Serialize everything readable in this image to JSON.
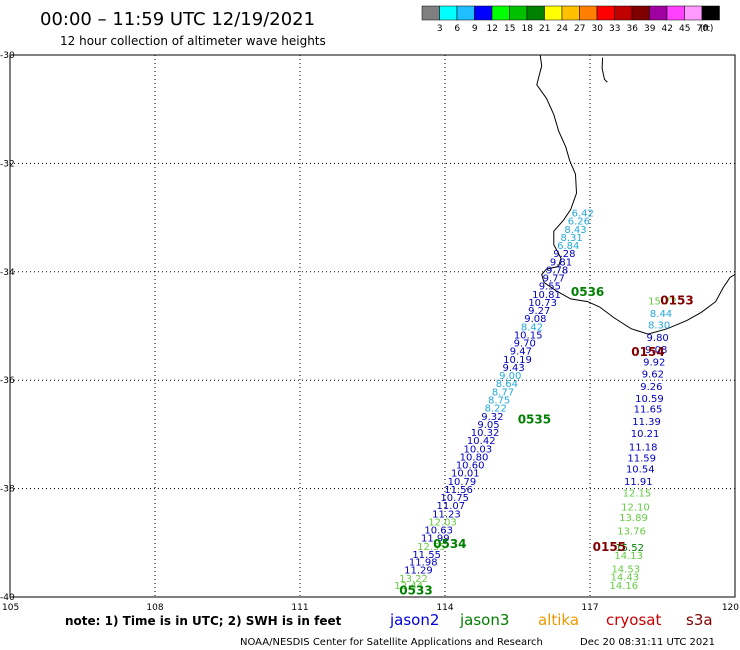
{
  "header": {
    "title": "00:00 – 11:59 UTC 12/19/2021",
    "subtitle": "12 hour collection of altimeter wave heights"
  },
  "colorbar": {
    "colors": [
      "#808080",
      "#00ffff",
      "#1fbfff",
      "#0000ff",
      "#00ff00",
      "#00c000",
      "#008000",
      "#ffff00",
      "#ffc000",
      "#ff8000",
      "#ff0000",
      "#c00000",
      "#800000",
      "#a000a0",
      "#ff40ff",
      "#ff99ff",
      "#000000"
    ],
    "labels": [
      "3",
      "6",
      "9",
      "12",
      "15",
      "18",
      "21",
      "24",
      "27",
      "30",
      "33",
      "36",
      "39",
      "42",
      "45",
      "70",
      "(ft)"
    ]
  },
  "chart_data": {
    "type": "scatter",
    "title": "00:00 – 11:59 UTC 12/19/2021",
    "subtitle": "12 hour collection of altimeter wave heights",
    "xlim": [
      105,
      120
    ],
    "ylim": [
      -40,
      -30
    ],
    "x_ticks": [
      "105",
      "108",
      "111",
      "114",
      "117",
      "120"
    ],
    "y_ticks": [
      "-30",
      "-32",
      "-34",
      "-36",
      "-38",
      "-40"
    ],
    "grid": true,
    "colors": {
      "jason2": "#0000c0",
      "jason3": "#008000",
      "jason3_light": "#66cc44",
      "cyan": "#22aadd",
      "pass_green": "#008000",
      "pass_red": "#800000"
    },
    "track_a": [
      {
        "x": 113.25,
        "y": -39.85,
        "v": "12.44",
        "c": "jason3_light"
      },
      {
        "x": 113.35,
        "y": -39.72,
        "v": "13.22",
        "c": "jason3_light"
      },
      {
        "x": 113.45,
        "y": -39.57,
        "v": "11.29",
        "c": "jason2"
      },
      {
        "x": 113.55,
        "y": -39.42,
        "v": "11.98",
        "c": "jason2"
      },
      {
        "x": 113.62,
        "y": -39.28,
        "v": "11.55",
        "c": "jason2"
      },
      {
        "x": 113.72,
        "y": -39.13,
        "v": "12.55",
        "c": "jason3_light"
      },
      {
        "x": 113.8,
        "y": -38.98,
        "v": "11.99",
        "c": "jason2"
      },
      {
        "x": 113.87,
        "y": -38.83,
        "v": "10.63",
        "c": "jason2"
      },
      {
        "x": 113.95,
        "y": -38.68,
        "v": "12.03",
        "c": "jason3_light"
      },
      {
        "x": 114.03,
        "y": -38.53,
        "v": "11.23",
        "c": "jason2"
      },
      {
        "x": 114.12,
        "y": -38.38,
        "v": "11.07",
        "c": "jason2"
      },
      {
        "x": 114.2,
        "y": -38.23,
        "v": "10.75",
        "c": "jason2"
      },
      {
        "x": 114.28,
        "y": -38.08,
        "v": "11.56",
        "c": "jason2"
      },
      {
        "x": 114.35,
        "y": -37.93,
        "v": "10.79",
        "c": "jason2"
      },
      {
        "x": 114.42,
        "y": -37.78,
        "v": "10.01",
        "c": "jason2"
      },
      {
        "x": 114.52,
        "y": -37.63,
        "v": "10.60",
        "c": "jason2"
      },
      {
        "x": 114.6,
        "y": -37.48,
        "v": "10.80",
        "c": "jason2"
      },
      {
        "x": 114.68,
        "y": -37.33,
        "v": "10.03",
        "c": "jason2"
      },
      {
        "x": 114.75,
        "y": -37.18,
        "v": "10.42",
        "c": "jason2"
      },
      {
        "x": 114.83,
        "y": -37.03,
        "v": "10.32",
        "c": "jason2"
      },
      {
        "x": 114.9,
        "y": -36.88,
        "v": "9.05",
        "c": "jason2"
      },
      {
        "x": 114.98,
        "y": -36.73,
        "v": "9.32",
        "c": "jason2"
      },
      {
        "x": 115.05,
        "y": -36.58,
        "v": "8.22",
        "c": "cyan"
      },
      {
        "x": 115.12,
        "y": -36.43,
        "v": "8.75",
        "c": "cyan"
      },
      {
        "x": 115.2,
        "y": -36.28,
        "v": "8.77",
        "c": "cyan"
      },
      {
        "x": 115.28,
        "y": -36.13,
        "v": "8.64",
        "c": "cyan"
      },
      {
        "x": 115.35,
        "y": -35.98,
        "v": "9.00",
        "c": "cyan"
      },
      {
        "x": 115.42,
        "y": -35.83,
        "v": "9.43",
        "c": "jason2"
      },
      {
        "x": 115.5,
        "y": -35.68,
        "v": "10.19",
        "c": "jason2"
      },
      {
        "x": 115.57,
        "y": -35.53,
        "v": "9.47",
        "c": "jason2"
      },
      {
        "x": 115.65,
        "y": -35.38,
        "v": "9.70",
        "c": "jason2"
      },
      {
        "x": 115.72,
        "y": -35.23,
        "v": "10.15",
        "c": "jason2"
      },
      {
        "x": 115.8,
        "y": -35.08,
        "v": "8.42",
        "c": "cyan"
      },
      {
        "x": 115.87,
        "y": -34.93,
        "v": "9.08",
        "c": "jason2"
      },
      {
        "x": 115.95,
        "y": -34.78,
        "v": "9.27",
        "c": "jason2"
      },
      {
        "x": 116.02,
        "y": -34.63,
        "v": "10.73",
        "c": "jason2"
      },
      {
        "x": 116.1,
        "y": -34.48,
        "v": "10.81",
        "c": "jason2"
      },
      {
        "x": 116.17,
        "y": -34.33,
        "v": "9.55",
        "c": "jason2"
      },
      {
        "x": 116.25,
        "y": -34.18,
        "v": "9.77",
        "c": "jason2"
      },
      {
        "x": 116.32,
        "y": -34.03,
        "v": "9.78",
        "c": "jason2"
      },
      {
        "x": 116.4,
        "y": -33.88,
        "v": "9.81",
        "c": "jason2"
      },
      {
        "x": 116.47,
        "y": -33.73,
        "v": "9.28",
        "c": "jason2"
      },
      {
        "x": 116.55,
        "y": -33.58,
        "v": "6.84",
        "c": "cyan"
      },
      {
        "x": 116.62,
        "y": -33.43,
        "v": "8.31",
        "c": "cyan"
      },
      {
        "x": 116.7,
        "y": -33.28,
        "v": "8.43",
        "c": "cyan"
      },
      {
        "x": 116.77,
        "y": -33.13,
        "v": "6.26",
        "c": "cyan"
      },
      {
        "x": 116.85,
        "y": -32.98,
        "v": "6.42",
        "c": "cyan"
      }
    ],
    "track_b": [
      {
        "x": 117.7,
        "y": -39.85,
        "v": "14.16",
        "c": "jason3_light"
      },
      {
        "x": 117.72,
        "y": -39.7,
        "v": "14.43",
        "c": "jason3_light"
      },
      {
        "x": 117.74,
        "y": -39.55,
        "v": "14.53",
        "c": "jason3_light"
      },
      {
        "x": 117.8,
        "y": -39.3,
        "v": "14.13",
        "c": "jason3_light"
      },
      {
        "x": 117.82,
        "y": -39.15,
        "v": "15.52",
        "c": "jason3"
      },
      {
        "x": 117.86,
        "y": -38.85,
        "v": "13.76",
        "c": "jason3_light"
      },
      {
        "x": 117.9,
        "y": -38.6,
        "v": "13.89",
        "c": "jason3_light"
      },
      {
        "x": 117.94,
        "y": -38.4,
        "v": "12.10",
        "c": "jason3_light"
      },
      {
        "x": 117.97,
        "y": -38.15,
        "v": "12.15",
        "c": "jason3_light"
      },
      {
        "x": 118.0,
        "y": -37.93,
        "v": "11.91",
        "c": "jason2"
      },
      {
        "x": 118.04,
        "y": -37.7,
        "v": "10.54",
        "c": "jason2"
      },
      {
        "x": 118.07,
        "y": -37.5,
        "v": "11.59",
        "c": "jason2"
      },
      {
        "x": 118.1,
        "y": -37.3,
        "v": "11.18",
        "c": "jason2"
      },
      {
        "x": 118.14,
        "y": -37.05,
        "v": "10.21",
        "c": "jason2"
      },
      {
        "x": 118.17,
        "y": -36.83,
        "v": "11.39",
        "c": "jason2"
      },
      {
        "x": 118.2,
        "y": -36.6,
        "v": "11.65",
        "c": "jason2"
      },
      {
        "x": 118.23,
        "y": -36.4,
        "v": "10.59",
        "c": "jason2"
      },
      {
        "x": 118.27,
        "y": -36.18,
        "v": "9.26",
        "c": "jason2"
      },
      {
        "x": 118.3,
        "y": -35.95,
        "v": "9.62",
        "c": "jason2"
      },
      {
        "x": 118.33,
        "y": -35.73,
        "v": "9.92",
        "c": "jason2"
      },
      {
        "x": 118.37,
        "y": -35.5,
        "v": "9.08",
        "c": "jason2"
      },
      {
        "x": 118.4,
        "y": -35.28,
        "v": "9.80",
        "c": "jason2"
      },
      {
        "x": 118.43,
        "y": -35.05,
        "v": "8.30",
        "c": "cyan"
      },
      {
        "x": 118.47,
        "y": -34.83,
        "v": "8.44",
        "c": "cyan"
      },
      {
        "x": 118.5,
        "y": -34.6,
        "v": "15.72",
        "c": "jason3_light"
      }
    ],
    "pass_labels": [
      {
        "x": 113.4,
        "y": -39.95,
        "text": "0533",
        "c": "pass_green"
      },
      {
        "x": 114.1,
        "y": -39.1,
        "text": "0534",
        "c": "pass_green"
      },
      {
        "x": 115.85,
        "y": -36.8,
        "text": "0535",
        "c": "pass_green"
      },
      {
        "x": 116.95,
        "y": -34.45,
        "text": "0536",
        "c": "pass_green"
      },
      {
        "x": 118.8,
        "y": -34.6,
        "text": "0153",
        "c": "pass_red"
      },
      {
        "x": 118.2,
        "y": -35.55,
        "text": "0154",
        "c": "pass_red"
      },
      {
        "x": 117.4,
        "y": -39.15,
        "text": "0155",
        "c": "pass_red"
      }
    ]
  },
  "coast": [
    [
      115.97,
      -30.0
    ],
    [
      116.0,
      -30.2
    ],
    [
      115.9,
      -30.55
    ],
    [
      116.1,
      -30.8
    ],
    [
      116.25,
      -31.1
    ],
    [
      116.35,
      -31.4
    ],
    [
      116.5,
      -31.7
    ],
    [
      116.58,
      -31.95
    ],
    [
      116.7,
      -32.2
    ],
    [
      116.72,
      -32.55
    ],
    [
      116.6,
      -32.85
    ],
    [
      116.45,
      -33.05
    ],
    [
      116.25,
      -33.25
    ],
    [
      116.25,
      -33.5
    ],
    [
      116.4,
      -33.75
    ],
    [
      116.35,
      -33.9
    ],
    [
      116.1,
      -33.95
    ],
    [
      116.0,
      -34.05
    ],
    [
      116.05,
      -34.2
    ],
    [
      116.3,
      -34.35
    ],
    [
      116.6,
      -34.5
    ],
    [
      116.95,
      -34.55
    ],
    [
      117.2,
      -34.65
    ],
    [
      117.5,
      -34.85
    ],
    [
      117.85,
      -35.05
    ],
    [
      118.2,
      -35.15
    ],
    [
      118.6,
      -35.05
    ],
    [
      119.0,
      -34.9
    ],
    [
      119.3,
      -34.75
    ],
    [
      119.6,
      -34.55
    ],
    [
      119.75,
      -34.3
    ],
    [
      119.9,
      -34.1
    ],
    [
      120.0,
      -34.05
    ]
  ],
  "rottnest": [
    [
      117.26,
      -30.05
    ],
    [
      117.25,
      -30.25
    ],
    [
      117.3,
      -30.45
    ],
    [
      117.36,
      -30.5
    ]
  ],
  "footer": {
    "note": "note:  1) Time is in UTC;  2) SWH is in feet",
    "credit": "NOAA/NESDIS Center for Satellite Applications and Research",
    "timestamp": "Dec 20 08:31:11 UTC 2021"
  },
  "legend": [
    {
      "label": "jason2",
      "color": "#0000dd"
    },
    {
      "label": "jason3",
      "color": "#008000"
    },
    {
      "label": "altika",
      "color": "#ee9900"
    },
    {
      "label": "cryosat",
      "color": "#cc0000"
    },
    {
      "label": "s3a",
      "color": "#800000"
    }
  ]
}
